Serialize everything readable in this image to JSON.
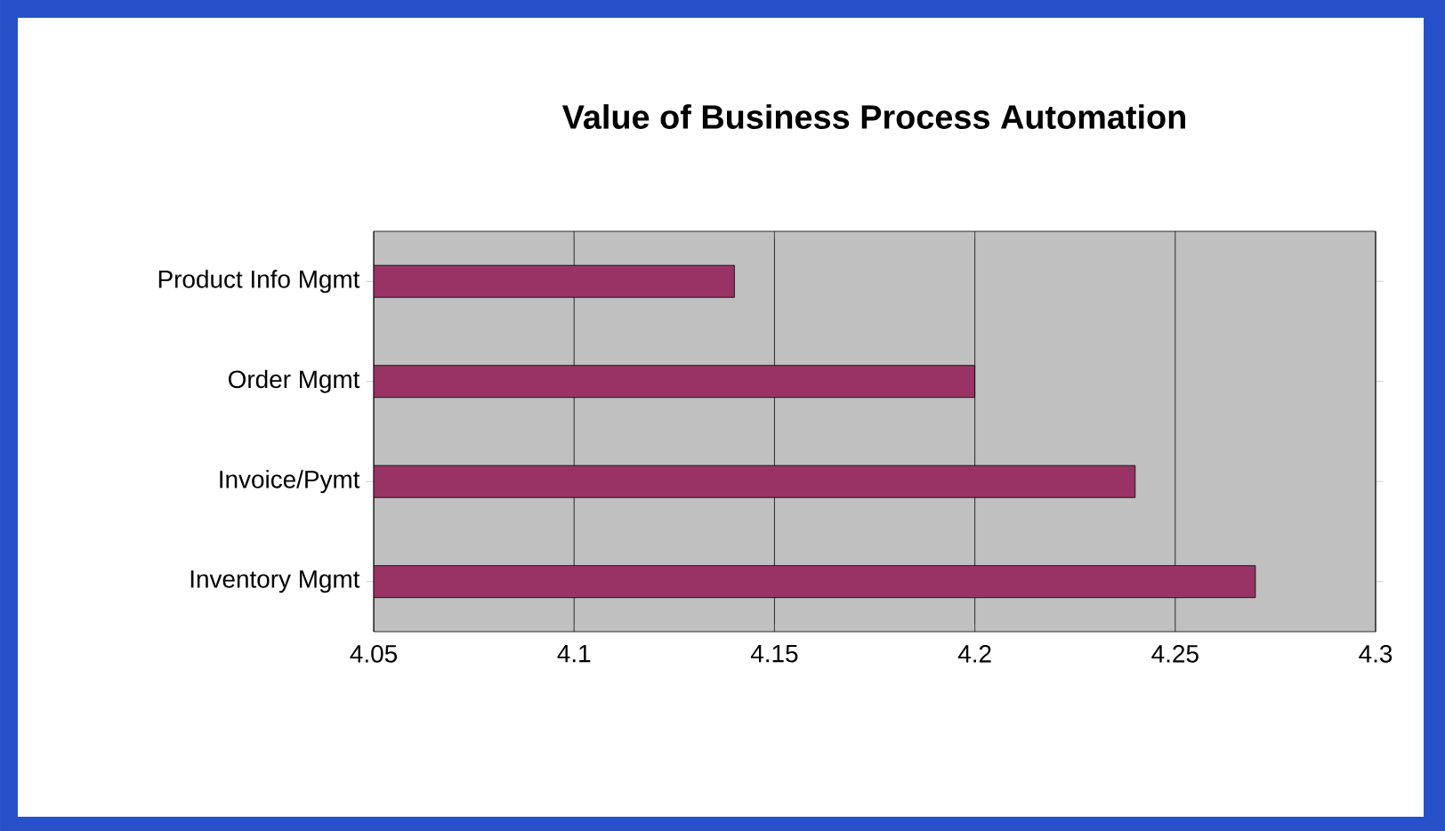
{
  "chart_data": {
    "type": "bar",
    "orientation": "horizontal",
    "title": "Value of Business Process Automation",
    "categories": [
      "Product Info Mgmt",
      "Order Mgmt",
      "Invoice/Pymt",
      "Inventory Mgmt"
    ],
    "values": [
      4.14,
      4.2,
      4.24,
      4.27
    ],
    "color": "#993366",
    "xlim": [
      4.05,
      4.3
    ],
    "xticks": [
      4.05,
      4.1,
      4.15,
      4.2,
      4.25,
      4.3
    ],
    "grid": "x"
  }
}
